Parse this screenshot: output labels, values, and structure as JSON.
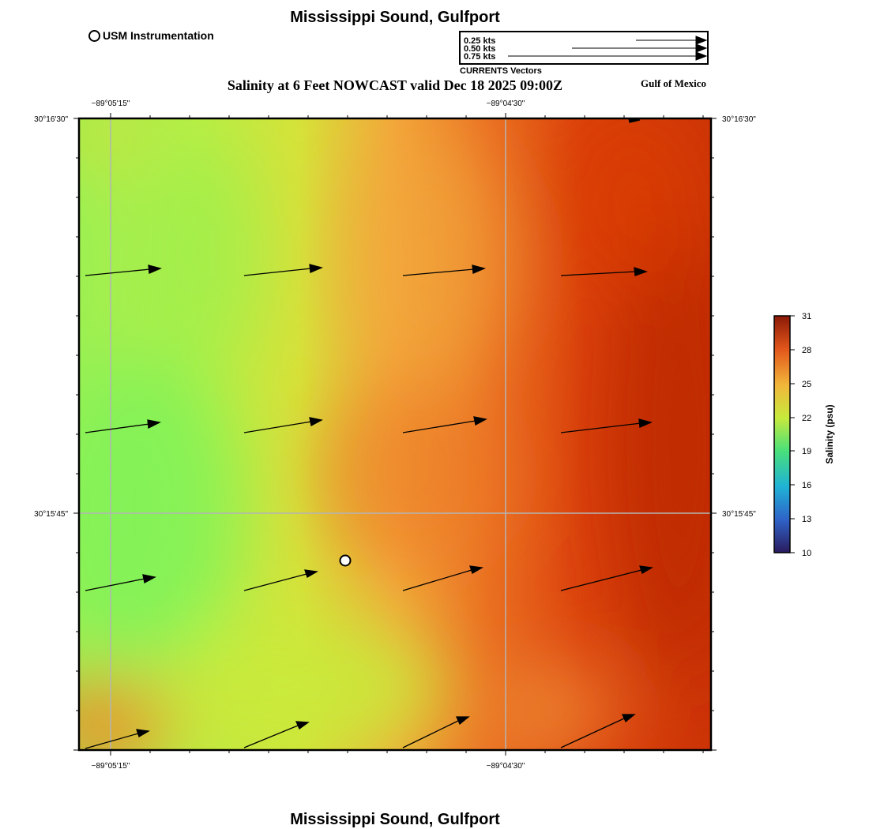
{
  "header": {
    "title": "Mississippi Sound, Gulfport",
    "subtitle": "Salinity at 6 Feet NOWCAST valid Dec 18 2025 09:00Z",
    "region": "Gulf of Mexico",
    "footer_title": "Mississippi Sound, Gulfport"
  },
  "station_legend": {
    "label": "USM Instrumentation"
  },
  "vector_legend": {
    "caption": "CURRENTS Vectors",
    "entries": [
      {
        "label": "0.25 kts",
        "speed": 0.25
      },
      {
        "label": "0.50 kts",
        "speed": 0.5
      },
      {
        "label": "0.75 kts",
        "speed": 0.75
      }
    ]
  },
  "map": {
    "lon_labels": [
      "−89°05'15\"",
      "−89°04'30\""
    ],
    "lat_labels": [
      "30°16'30\"",
      "30°15'45\""
    ],
    "gridline_color": "#b4b4b4"
  },
  "colorbar": {
    "label": "Salinity (psu)",
    "ticks": [
      "31",
      "28",
      "25",
      "22",
      "19",
      "16",
      "13",
      "10"
    ],
    "min": 10,
    "max": 31,
    "colors": [
      "#2a1b5e",
      "#2f63c8",
      "#1fb3d6",
      "#49e07a",
      "#c8ea3c",
      "#f1b53a",
      "#e2561b",
      "#8a1906"
    ]
  },
  "salinity_field_colors": {
    "low": "#7ef25a",
    "mid": "#cbe93b",
    "high_mid": "#f3a63a",
    "high": "#dc3f0c",
    "max": "#b92b04"
  }
}
